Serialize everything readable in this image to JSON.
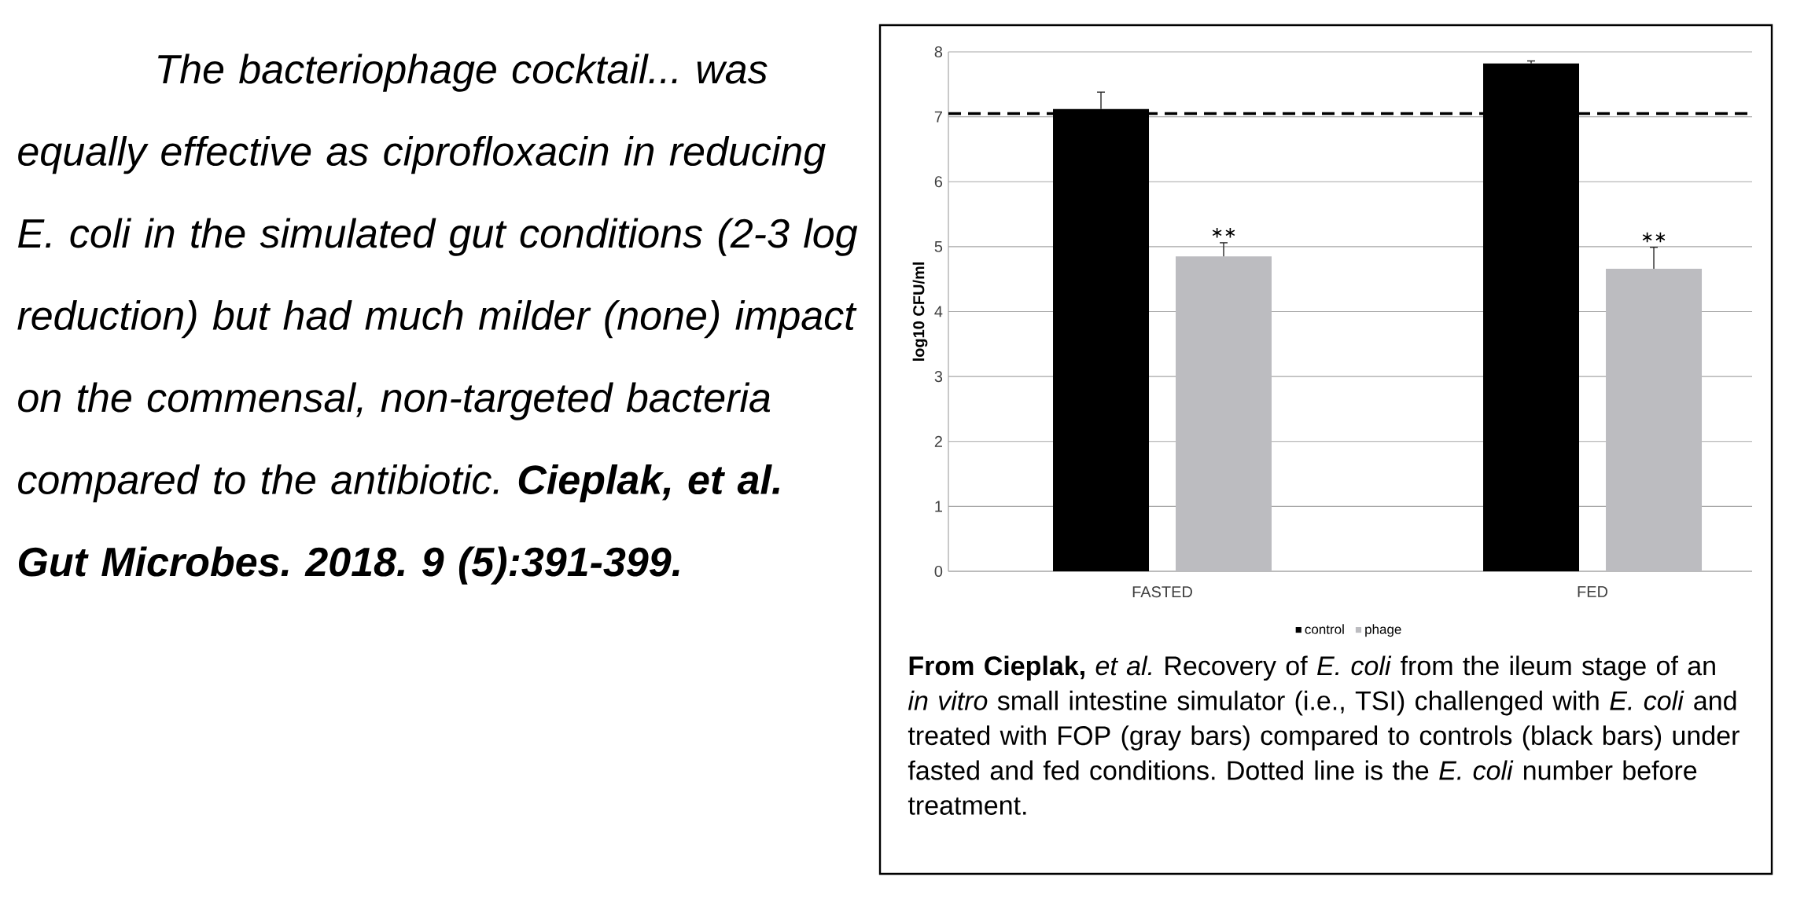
{
  "chart_data": {
    "type": "bar",
    "ylabel": "log10 CFU/ml",
    "categories": [
      "FASTED",
      "FED"
    ],
    "series": [
      {
        "name": "control",
        "color": "#000000",
        "values": [
          7.12,
          7.82
        ],
        "errors": [
          [
            7.12,
            7.38
          ],
          [
            7.82,
            7.86
          ]
        ]
      },
      {
        "name": "phage",
        "color": "#bcbcc0",
        "values": [
          4.85,
          4.66
        ],
        "errors": [
          [
            4.85,
            5.06
          ],
          [
            4.66,
            4.99
          ]
        ]
      }
    ],
    "ylim": [
      0,
      8
    ],
    "yticks": [
      0,
      1,
      2,
      3,
      4,
      5,
      6,
      7,
      8
    ],
    "grid": "y",
    "legend": "bottom",
    "ref_lines": [
      {
        "axis": "y",
        "value": 7.05,
        "color": "#000000",
        "line_style": "dashed"
      }
    ],
    "annotations": [
      "∗∗",
      "∗∗",
      "The bacteriophage cocktail... was equally effective as ciprofloxacin in reducing E. coli in the simulated gut conditions (2-3 log reduction) but had much milder (none) impact on the commensal, non-targeted bacteria compared to the antibiotic. **Cieplak, et al. Gut Microbes. 2018. 9 (5):391-399.**",
      "**From Cieplak,** *et al.* Recovery of *E. coli* from the ileum stage of an *in vitro* small intestine simulator (i.e., TSI) challenged with *E. coli* and treated with FOP (gray bars) compared to controls (black bars) under fasted and fed conditions. Dotted line is the *E. coli* number before treatment."
    ]
  }
}
